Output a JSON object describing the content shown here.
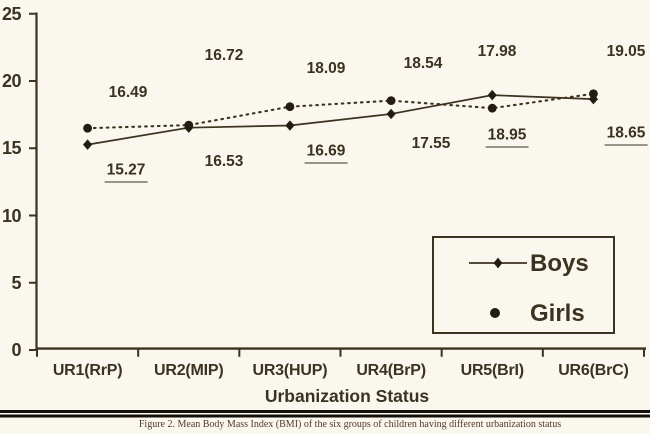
{
  "figure_caption": "Figure 2. Mean Body Mass Index (BMI) of the six groups of children having different urbanization status",
  "chart_data": {
    "type": "line",
    "title": "",
    "xlabel": "Urbanization Status",
    "ylabel": "",
    "ylim": [
      0,
      25
    ],
    "yticks": [
      "0",
      "5",
      "10",
      "15",
      "20",
      "25"
    ],
    "grid": false,
    "legend_position": "inside-bottom-right",
    "categories": [
      "UR1(RrP)",
      "UR2(MIP)",
      "UR3(HUP)",
      "UR4(BrP)",
      "UR5(BrI)",
      "UR6(BrC)"
    ],
    "series": [
      {
        "name": "Boys",
        "marker": "diamond",
        "line_style": "solid",
        "values": [
          15.27,
          16.53,
          16.69,
          17.55,
          18.95,
          18.65
        ],
        "labels": [
          "15.27",
          "16.53",
          "16.69",
          "17.55",
          "18.95",
          "18.65"
        ],
        "underlined": [
          true,
          false,
          true,
          false,
          true,
          true
        ],
        "label_anchors": [
          [
            126,
            172
          ],
          [
            224,
            162
          ],
          [
            326,
            153
          ],
          [
            431,
            144
          ],
          [
            507,
            137
          ],
          [
            626,
            135
          ]
        ]
      },
      {
        "name": "Girls",
        "marker": "circle",
        "line_style": "dotted",
        "values": [
          16.49,
          16.72,
          18.09,
          18.54,
          17.98,
          19.05
        ],
        "labels": [
          "16.49",
          "16.72",
          "18.09",
          "18.54",
          "17.98",
          "19.05"
        ],
        "underlined": [
          false,
          false,
          false,
          false,
          false,
          false
        ],
        "label_anchors": [
          [
            128,
            93
          ],
          [
            224,
            56
          ],
          [
            326,
            69
          ],
          [
            423,
            64
          ],
          [
            497,
            52
          ],
          [
            626,
            52
          ]
        ]
      }
    ]
  },
  "colors": {
    "ink": "#3b321f",
    "marker": "#221c12",
    "background": "#faf7ef",
    "caption": "#53392a",
    "rule": "#140f09"
  }
}
